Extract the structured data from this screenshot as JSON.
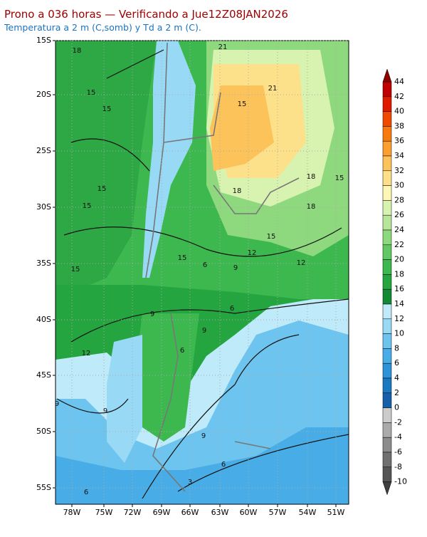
{
  "header": {
    "title": "Prono a 036 horas — Verificando a Jue12Z08JAN2026",
    "subtitle": "Temperatura a 2 m (C,somb) y Td a 2 m (C)."
  },
  "map": {
    "lat_labels": [
      "15S",
      "20S",
      "25S",
      "30S",
      "35S",
      "40S",
      "45S",
      "50S",
      "55S"
    ],
    "lon_labels": [
      "78W",
      "75W",
      "72W",
      "69W",
      "66W",
      "63W",
      "60W",
      "57W",
      "54W",
      "51W"
    ],
    "contour_labels": [
      18,
      21,
      21,
      15,
      15,
      15,
      18,
      15,
      15,
      15,
      18,
      18,
      15,
      15,
      15,
      12,
      12,
      9,
      6,
      9,
      6,
      9,
      6,
      12,
      9,
      9,
      9,
      6,
      6,
      3
    ]
  },
  "colorbar": {
    "levels": [
      44,
      42,
      40,
      38,
      36,
      34,
      32,
      30,
      28,
      26,
      24,
      22,
      20,
      18,
      16,
      14,
      12,
      10,
      8,
      6,
      4,
      2,
      0,
      -2,
      -4,
      -6,
      -8,
      -10
    ],
    "colors": [
      "#8c0000",
      "#c00000",
      "#e01a00",
      "#f04a00",
      "#f77a10",
      "#fa9f30",
      "#fcc35a",
      "#fde08a",
      "#fdf6b5",
      "#d8f2b0",
      "#b5e69a",
      "#8ed97e",
      "#62c866",
      "#3db84e",
      "#24a53f",
      "#128a33",
      "#bfeaf9",
      "#98daf5",
      "#6cc4ef",
      "#48ade6",
      "#2d92d6",
      "#1c78c0",
      "#1560a8",
      "#cccccc",
      "#aaaaaa",
      "#8c8c8c",
      "#707070",
      "#555555",
      "#3e3e3e"
    ]
  }
}
